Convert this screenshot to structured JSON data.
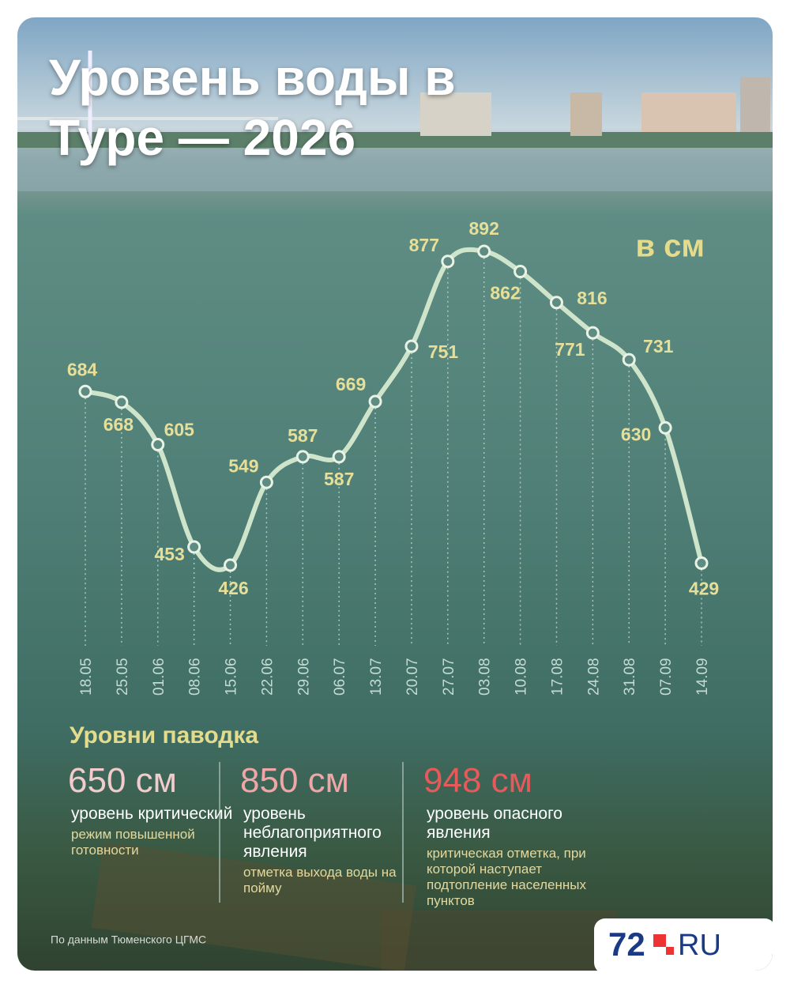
{
  "title": "Уровень воды в Туре — 2026",
  "chart_data": {
    "type": "line",
    "unit_label": "в см",
    "categories": [
      "18.05",
      "25.05",
      "01.06",
      "08.06",
      "15.06",
      "22.06",
      "29.06",
      "06.07",
      "13.07",
      "20.07",
      "27.07",
      "03.08",
      "10.08",
      "17.08",
      "24.08",
      "31.08",
      "07.09",
      "14.09"
    ],
    "values": [
      684,
      668,
      605,
      453,
      426,
      549,
      587,
      587,
      669,
      751,
      877,
      892,
      862,
      816,
      771,
      731,
      630,
      429
    ],
    "color": "#cfe5cb"
  },
  "flood_levels": {
    "title": "Уровни паводка",
    "items": [
      {
        "level": "650 см",
        "name": "уровень критический",
        "note": "режим повышенной готовности",
        "color": "#f2cccc"
      },
      {
        "level": "850 см",
        "name": "уровень неблагоприятного явления",
        "note": "отметка выхода воды на пойму",
        "color": "#f0a6a6"
      },
      {
        "level": "948 см",
        "name": "уровень опасного явления",
        "note": "критическая отметка, при которой наступает подтопление населенных пунктов",
        "color": "#e85a5a"
      }
    ]
  },
  "source": "По данным Тюменского ЦГМС",
  "logo": {
    "number": "72",
    "domain": "RU"
  }
}
